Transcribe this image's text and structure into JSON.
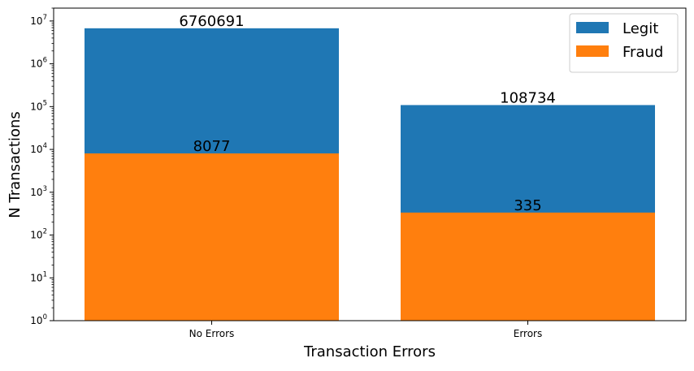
{
  "chart_data": {
    "type": "bar",
    "stacking": "overlaid",
    "categories": [
      "No Errors",
      "Errors"
    ],
    "series": [
      {
        "name": "Legit",
        "values": [
          6760691,
          108734
        ],
        "color": "#1f77b4"
      },
      {
        "name": "Fraud",
        "values": [
          8077,
          335
        ],
        "color": "#ff7f0e"
      }
    ],
    "data_labels": [
      {
        "series": "Legit",
        "values": [
          "6760691",
          "108734"
        ]
      },
      {
        "series": "Fraud",
        "values": [
          "8077",
          "335"
        ]
      }
    ],
    "xlabel": "Transaction Errors",
    "ylabel": "N Transactions",
    "yscale": "log",
    "ylim": [
      1,
      20000000
    ],
    "yticks": [
      {
        "value": 1,
        "mantissa": "10",
        "exponent": "0"
      },
      {
        "value": 10,
        "mantissa": "10",
        "exponent": "1"
      },
      {
        "value": 100,
        "mantissa": "10",
        "exponent": "2"
      },
      {
        "value": 1000,
        "mantissa": "10",
        "exponent": "3"
      },
      {
        "value": 10000,
        "mantissa": "10",
        "exponent": "4"
      },
      {
        "value": 100000,
        "mantissa": "10",
        "exponent": "5"
      },
      {
        "value": 1000000,
        "mantissa": "10",
        "exponent": "6"
      },
      {
        "value": 10000000,
        "mantissa": "10",
        "exponent": "7"
      }
    ],
    "legend": "upper right",
    "grid": false
  }
}
